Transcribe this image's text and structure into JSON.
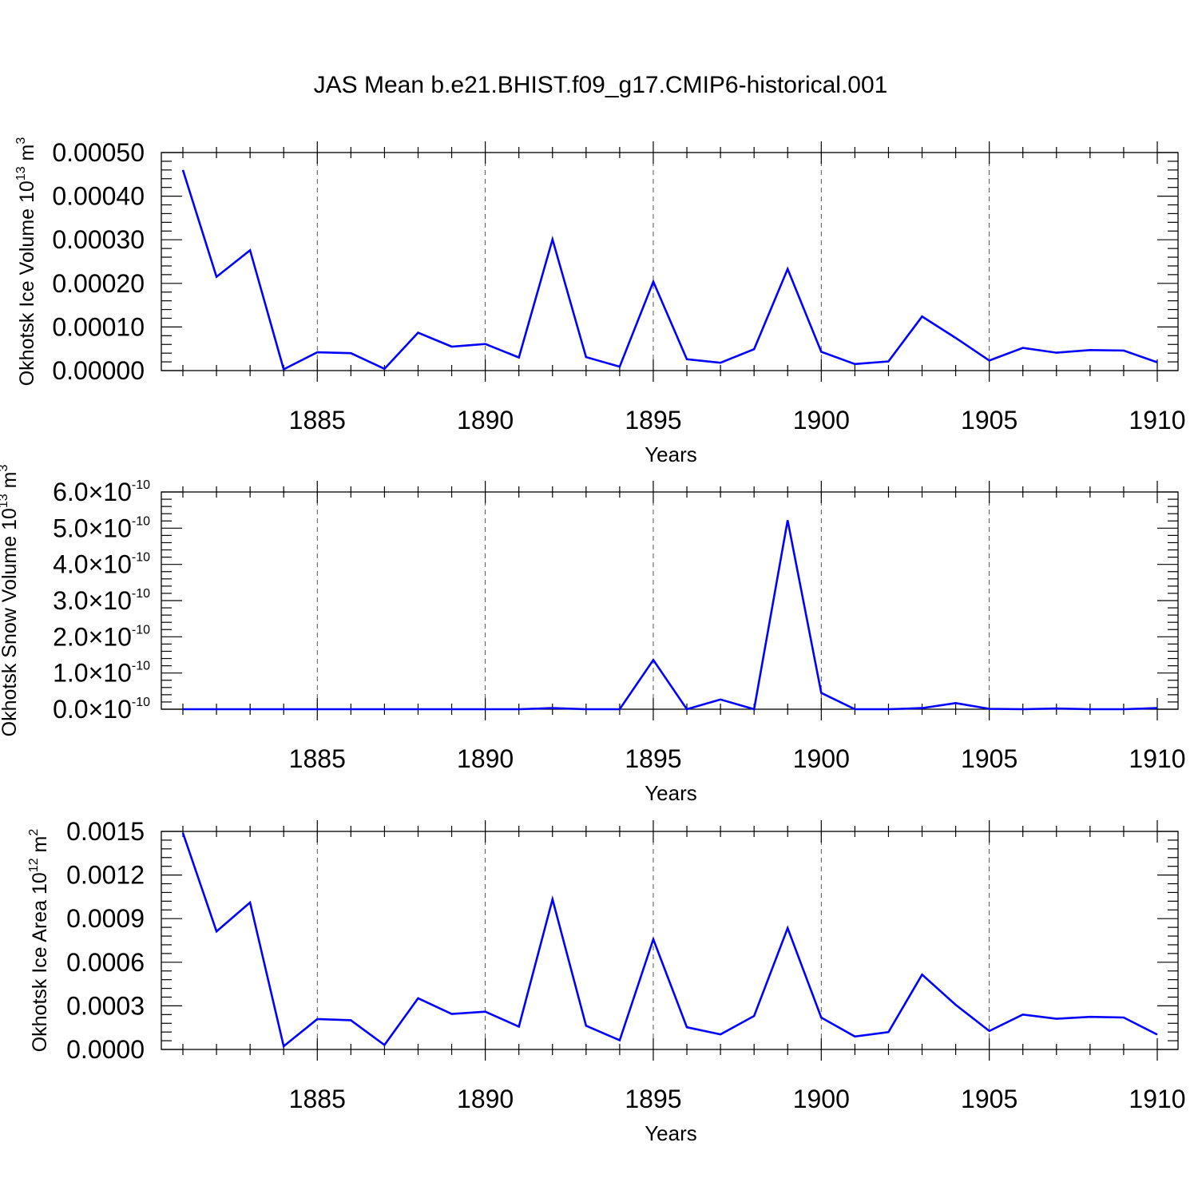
{
  "title": "JAS Mean b.e21.BHIST.f09_g17.CMIP6-historical.001",
  "colors": {
    "series": "#0000ff",
    "frame": "#000000"
  },
  "chart_data": [
    {
      "type": "line",
      "ylabel": "Okhotsk Ice Volume 10",
      "ylabel_exp": "13",
      "ylabel_unit": " m",
      "ylabel_unit_exp": "3",
      "xlabel": "Years",
      "grid": "vertical dashed at major x ticks",
      "xlim": [
        1881,
        1910
      ],
      "ylim": [
        0,
        0.0005
      ],
      "xticks": [
        1885,
        1890,
        1895,
        1900,
        1905,
        1910
      ],
      "xtick_labels": [
        "1885",
        "1890",
        "1895",
        "1900",
        "1905",
        "1910"
      ],
      "yticks": [
        0,
        0.0001,
        0.0002,
        0.0003,
        0.0004,
        0.0005
      ],
      "ytick_labels": [
        "0.00000",
        "0.00010",
        "0.00020",
        "0.00030",
        "0.00040",
        "0.00050"
      ],
      "x": [
        1881,
        1882,
        1883,
        1884,
        1885,
        1886,
        1887,
        1888,
        1889,
        1890,
        1891,
        1892,
        1893,
        1894,
        1895,
        1896,
        1897,
        1898,
        1899,
        1900,
        1901,
        1902,
        1903,
        1904,
        1905,
        1906,
        1907,
        1908,
        1909,
        1910
      ],
      "y": [
        0.00046,
        0.000215,
        0.000276,
        3e-06,
        4.2e-05,
        4e-05,
        4e-06,
        8.7e-05,
        5.5e-05,
        6.1e-05,
        3e-05,
        0.000301,
        3.1e-05,
        9e-06,
        0.000204,
        2.6e-05,
        1.8e-05,
        4.9e-05,
        0.000233,
        4.3e-05,
        1.5e-05,
        2.1e-05,
        0.000124,
        7.5e-05,
        2.3e-05,
        5.2e-05,
        4.1e-05,
        4.7e-05,
        4.6e-05,
        1.9e-05
      ]
    },
    {
      "type": "line",
      "ylabel": "Okhotsk Snow Volume 10",
      "ylabel_exp": "13",
      "ylabel_unit": " m",
      "ylabel_unit_exp": "3",
      "xlabel": "Years",
      "grid": "vertical dashed at major x ticks",
      "xlim": [
        1881,
        1910
      ],
      "ylim": [
        0,
        6e-10
      ],
      "xticks": [
        1885,
        1890,
        1895,
        1900,
        1905,
        1910
      ],
      "xtick_labels": [
        "1885",
        "1890",
        "1895",
        "1900",
        "1905",
        "1910"
      ],
      "yticks": [
        0,
        1e-10,
        2e-10,
        3e-10,
        4e-10,
        5e-10,
        6e-10
      ],
      "ytick_labels": [
        "0.0",
        "1.0",
        "2.0",
        "3.0",
        "4.0",
        "5.0",
        "6.0"
      ],
      "ytick_multiplier": "×10",
      "ytick_exponent": "-10",
      "x": [
        1881,
        1882,
        1883,
        1884,
        1885,
        1886,
        1887,
        1888,
        1889,
        1890,
        1891,
        1892,
        1893,
        1894,
        1895,
        1896,
        1897,
        1898,
        1899,
        1900,
        1901,
        1902,
        1903,
        1904,
        1905,
        1906,
        1907,
        1908,
        1909,
        1910
      ],
      "y": [
        0,
        0,
        0,
        0,
        0,
        0,
        0,
        0,
        0,
        0,
        0,
        3e-12,
        0,
        0,
        1.36e-10,
        0,
        2.7e-11,
        0,
        5.22e-10,
        4.5e-11,
        0,
        0,
        3e-12,
        1.7e-11,
        1e-12,
        0,
        2e-12,
        0,
        0,
        3e-12
      ]
    },
    {
      "type": "line",
      "ylabel": "Okhotsk Ice Area 10",
      "ylabel_exp": "12",
      "ylabel_unit": " m",
      "ylabel_unit_exp": "2",
      "xlabel": "Years",
      "grid": "vertical dashed at major x ticks",
      "xlim": [
        1881,
        1910
      ],
      "ylim": [
        0,
        0.0015
      ],
      "xticks": [
        1885,
        1890,
        1895,
        1900,
        1905,
        1910
      ],
      "xtick_labels": [
        "1885",
        "1890",
        "1895",
        "1900",
        "1905",
        "1910"
      ],
      "yticks": [
        0,
        0.0003,
        0.0006,
        0.0009,
        0.0012,
        0.0015
      ],
      "ytick_labels": [
        "0.0000",
        "0.0003",
        "0.0006",
        "0.0009",
        "0.0012",
        "0.0015"
      ],
      "x": [
        1881,
        1882,
        1883,
        1884,
        1885,
        1886,
        1887,
        1888,
        1889,
        1890,
        1891,
        1892,
        1893,
        1894,
        1895,
        1896,
        1897,
        1898,
        1899,
        1900,
        1901,
        1902,
        1903,
        1904,
        1905,
        1906,
        1907,
        1908,
        1909,
        1910
      ],
      "y": [
        0.00149,
        0.000812,
        0.001011,
        2.2e-05,
        0.000209,
        0.000201,
        3.1e-05,
        0.000352,
        0.000244,
        0.00026,
        0.000157,
        0.001033,
        0.000163,
        6.3e-05,
        0.000758,
        0.000153,
        0.000104,
        0.00023,
        0.000835,
        0.000219,
        8.9e-05,
        0.000119,
        0.000515,
        0.000307,
        0.000127,
        0.00024,
        0.000211,
        0.000224,
        0.00022,
        0.000102
      ]
    }
  ]
}
